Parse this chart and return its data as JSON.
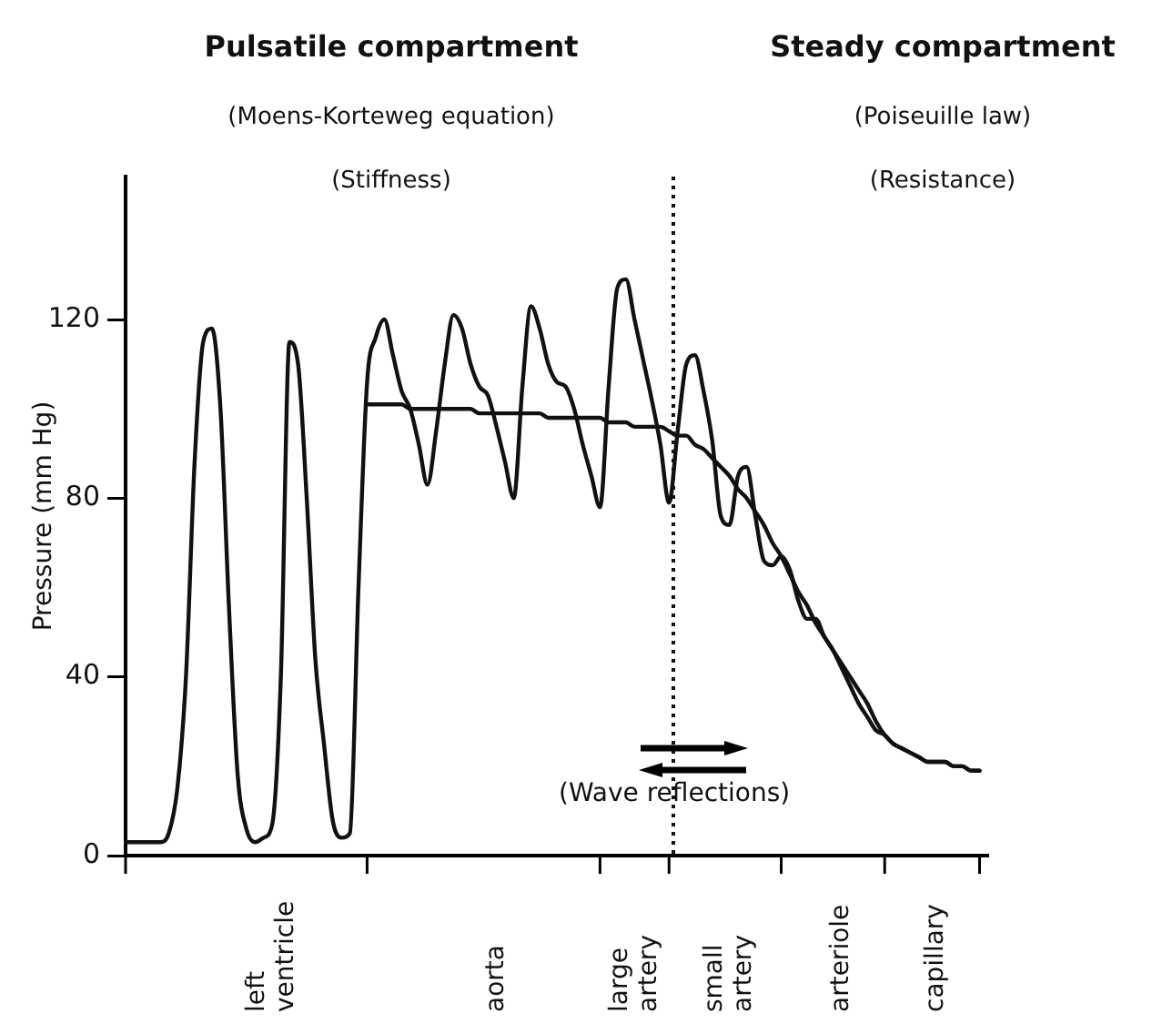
{
  "chart_data": {
    "type": "line",
    "ylabel": "Pressure (mm Hg)",
    "annotations": [
      "Pulsatile compartment",
      "(Moens-Korteweg equation)",
      "(Stiffness)",
      "Steady compartment",
      "(Poiseuille law)",
      "(Resistance)",
      "(Wave reflections)"
    ],
    "categories": [
      null,
      null,
      null,
      null,
      null,
      null,
      null,
      null,
      null,
      null,
      null,
      null,
      null,
      null,
      null,
      null,
      null,
      "left ventricle",
      null,
      null,
      null,
      null,
      null,
      null,
      null,
      null,
      null,
      null,
      null,
      null,
      null,
      null,
      null,
      null,
      null,
      null,
      null,
      null,
      null,
      null,
      null,
      null,
      null,
      "aorta",
      null,
      null,
      null,
      null,
      null,
      null,
      null,
      null,
      null,
      null,
      null,
      null,
      null,
      null,
      null,
      "large artery",
      null,
      null,
      null,
      null,
      null,
      null,
      null,
      null,
      null,
      null,
      "small artery",
      null,
      null,
      null,
      null,
      null,
      null,
      null,
      null,
      null,
      null,
      null,
      null,
      "arteriole",
      null,
      null,
      null,
      null,
      null,
      null,
      null,
      null,
      null,
      null,
      "capillary",
      null,
      null,
      null,
      null,
      null,
      null
    ],
    "series": [
      {
        "color": "#111111",
        "values": [
          3,
          3,
          3,
          3,
          3,
          5,
          15,
          40,
          88,
          115,
          118,
          100,
          55,
          18,
          6,
          3,
          4,
          7,
          40,
          115,
          110,
          80,
          44,
          25,
          8,
          4,
          5,
          60,
          106,
          116,
          120,
          112,
          104,
          100,
          92,
          83,
          95,
          110,
          121,
          118,
          110,
          105,
          103,
          96,
          88,
          80,
          105,
          123,
          118,
          110,
          106,
          105,
          100,
          92,
          85,
          78,
          105,
          127,
          129,
          120,
          111,
          102,
          92,
          79,
          95,
          110,
          112,
          104,
          93,
          76,
          74,
          85,
          87,
          76,
          66,
          65,
          67,
          64,
          57,
          53,
          53,
          49,
          46,
          43,
          40,
          37,
          34,
          30,
          27,
          25,
          24,
          23,
          22,
          21,
          21,
          21,
          20,
          20,
          19,
          19,
          null
        ]
      },
      {
        "color": "#111111",
        "values": [
          null,
          null,
          null,
          null,
          null,
          null,
          null,
          null,
          null,
          null,
          null,
          null,
          null,
          null,
          null,
          null,
          null,
          null,
          null,
          null,
          null,
          null,
          null,
          null,
          null,
          null,
          null,
          null,
          101,
          101,
          101,
          101,
          101,
          100,
          100,
          100,
          100,
          100,
          100,
          100,
          100,
          99,
          99,
          99,
          99,
          99,
          99,
          99,
          99,
          98,
          98,
          98,
          98,
          98,
          98,
          98,
          97,
          97,
          97,
          96,
          96,
          96,
          96,
          95,
          94,
          94,
          92,
          91,
          89,
          87,
          85,
          82,
          80,
          77,
          74,
          70,
          67,
          63,
          59,
          56,
          52,
          49,
          46,
          42,
          38,
          34,
          31,
          28,
          27,
          25,
          24,
          23,
          22,
          21,
          21,
          21,
          20,
          20,
          19,
          19,
          null
        ]
      }
    ],
    "ylim": [
      0,
      152
    ],
    "yticks": [
      0,
      40,
      80,
      120
    ],
    "grid": false,
    "legend": false,
    "marker": "none",
    "line_style": "solid"
  }
}
